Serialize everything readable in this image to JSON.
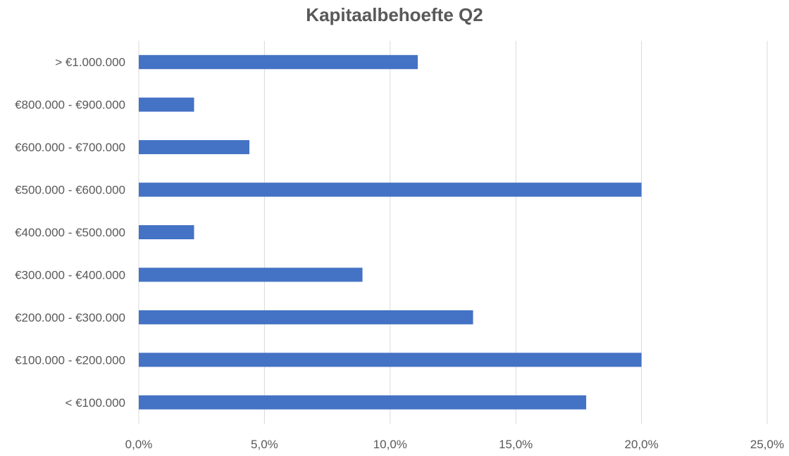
{
  "chart_data": {
    "type": "bar",
    "orientation": "horizontal",
    "title": "Kapitaalbehoefte Q2",
    "xlabel": "",
    "ylabel": "",
    "categories": [
      "< €100.000",
      "€100.000 - €200.000",
      "€200.000 - €300.000",
      "€300.000 - €400.000",
      "€400.000 - €500.000",
      "€500.000 - €600.000",
      "€600.000 - €700.000",
      "€800.000 - €900.000",
      "> €1.000.000"
    ],
    "values": [
      17.8,
      20.0,
      13.3,
      8.9,
      2.2,
      20.0,
      4.4,
      2.2,
      11.1
    ],
    "xlim": [
      0,
      25
    ],
    "x_ticks": [
      0,
      5,
      10,
      15,
      20,
      25
    ],
    "x_tick_labels": [
      "0,0%",
      "5,0%",
      "10,0%",
      "15,0%",
      "20,0%",
      "25,0%"
    ],
    "grid": "vertical",
    "legend": "none",
    "bar_color": "#4472c4",
    "grid_color": "#d9d9d9",
    "text_color": "#595959"
  }
}
